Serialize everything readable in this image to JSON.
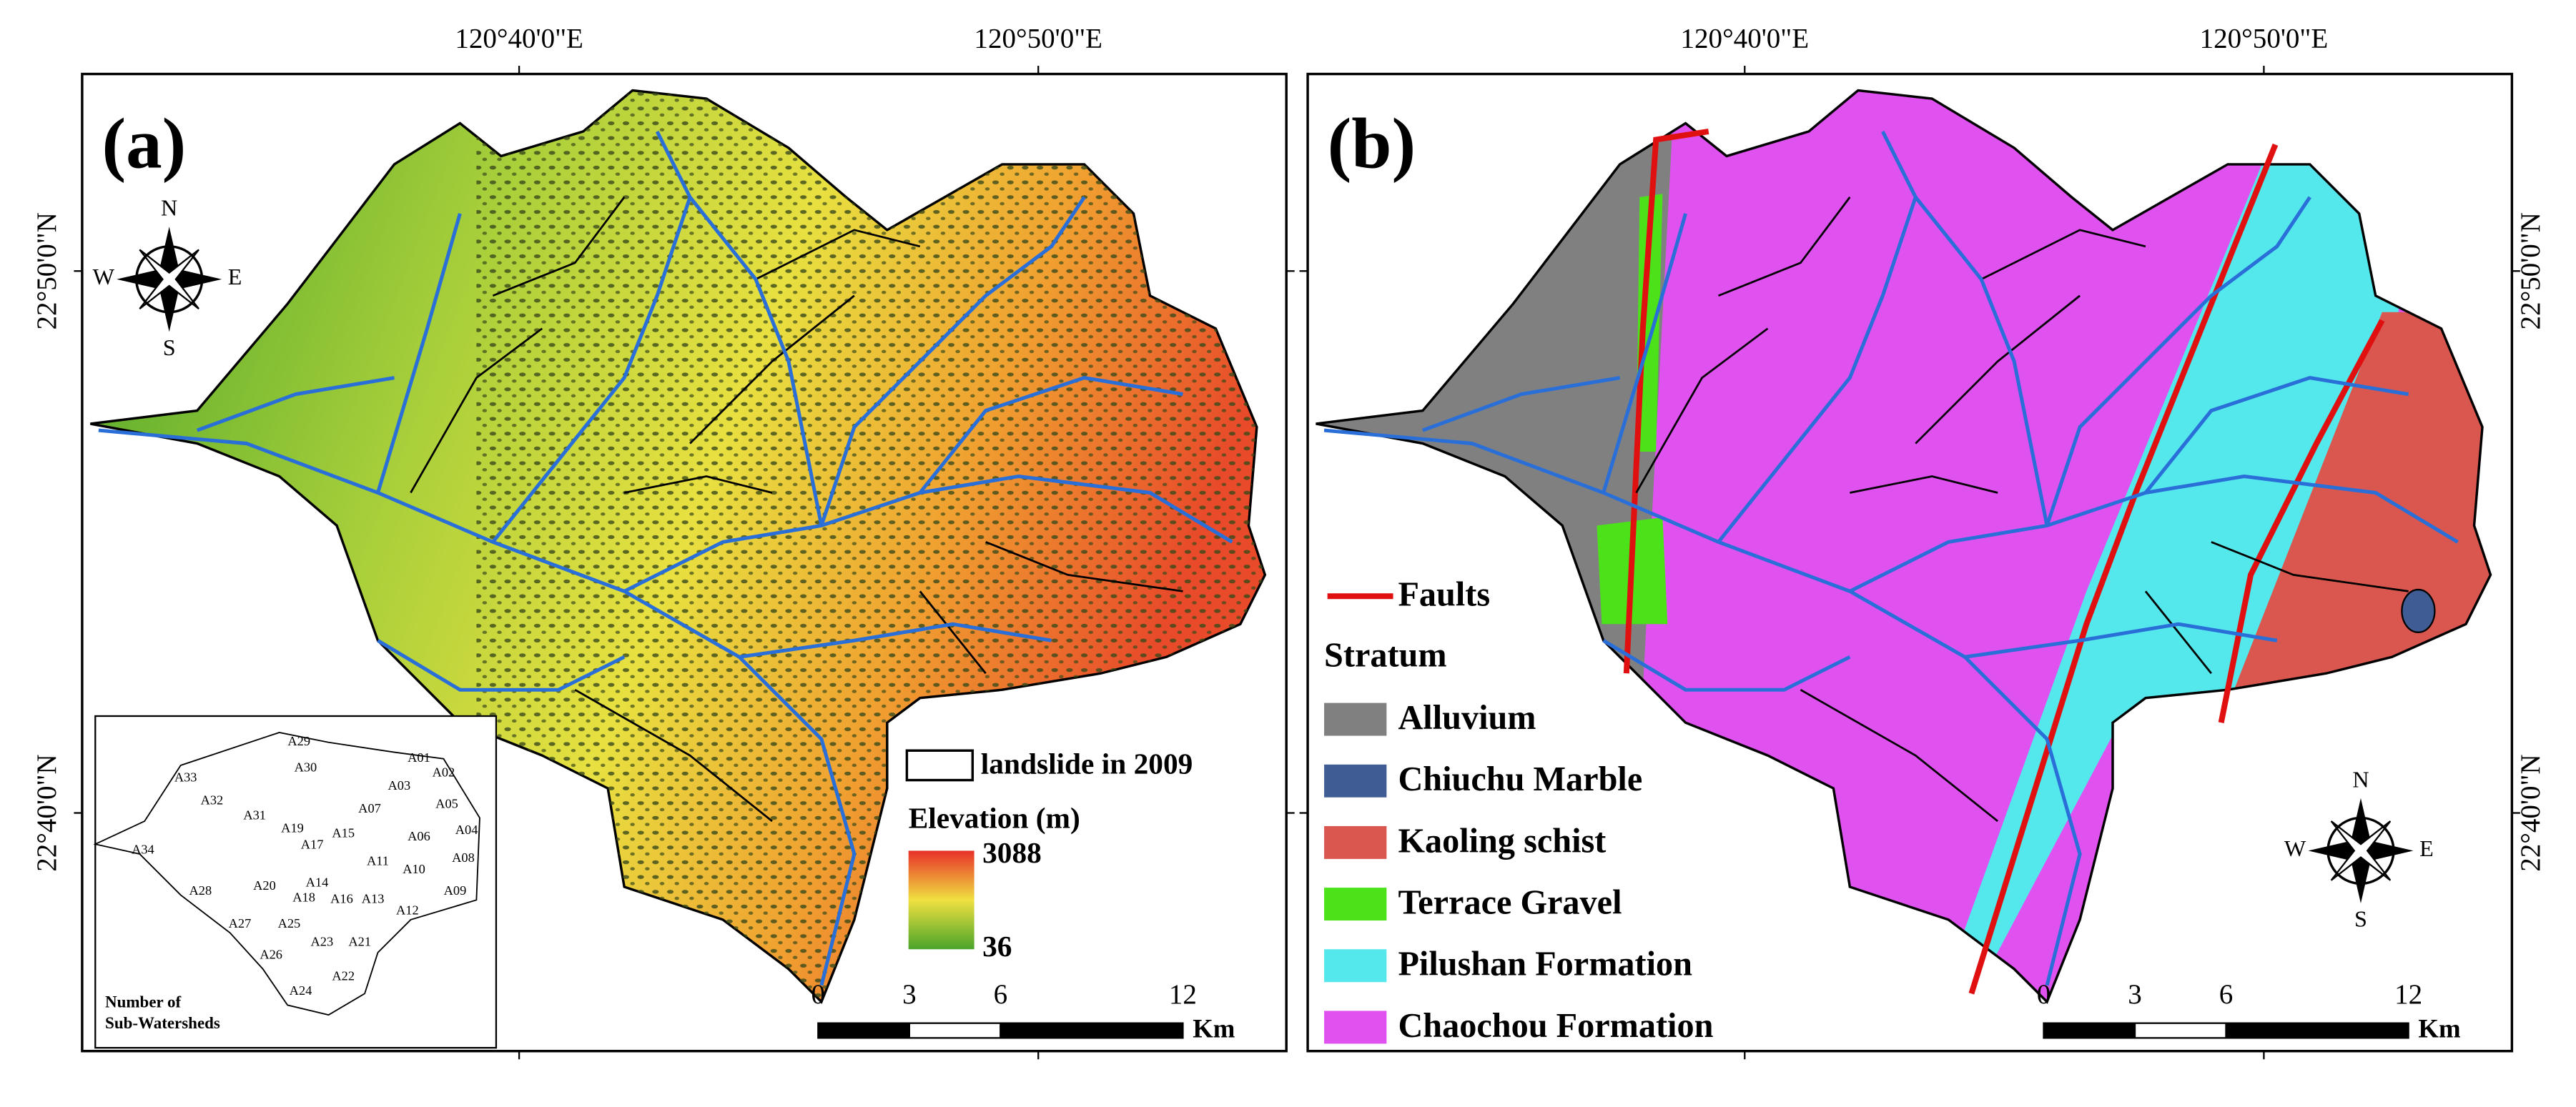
{
  "panels": [
    {
      "label": "(a)",
      "lon_labels": [
        "120°40'0\"E",
        "120°50'0\"E"
      ],
      "lat_labels": [
        "22°50'0\"N",
        "22°40'0\"N"
      ],
      "compass": {
        "n": "N",
        "s": "S",
        "w": "W",
        "e": "E"
      },
      "landslide_label": "landslide in 2009",
      "elevation_title": "Elevation (m)",
      "elevation_max": 3088,
      "elevation_min": 36,
      "scale_ticks": [
        0,
        3,
        6,
        12
      ],
      "scale_unit": "Km",
      "inset": {
        "title": [
          "Number of",
          "Sub-Watersheds"
        ],
        "labels": [
          "A29",
          "A33",
          "A30",
          "A01",
          "A02",
          "A32",
          "A31",
          "A03",
          "A05",
          "A07",
          "A19",
          "A15",
          "A04",
          "A17",
          "A06",
          "A11",
          "A10",
          "A08",
          "A34",
          "A20",
          "A14",
          "A16",
          "A13",
          "A12",
          "A09",
          "A28",
          "A18",
          "A25",
          "A27",
          "A26",
          "A23",
          "A21",
          "A22",
          "A24"
        ]
      }
    },
    {
      "label": "(b)",
      "lon_labels": [
        "120°40'0\"E",
        "120°50'0\"E"
      ],
      "lat_labels": [
        "22°50'0\"N",
        "22°40'0\"N"
      ],
      "compass": {
        "n": "N",
        "s": "S",
        "w": "W",
        "e": "E"
      },
      "faults_label": "Faults",
      "stratum_title": "Stratum",
      "strata": [
        {
          "name": "Alluvium",
          "color": "#808080"
        },
        {
          "name": "Chiuchu Marble",
          "color": "#3f5d94"
        },
        {
          "name": "Kaoling schist",
          "color": "#d9574f"
        },
        {
          "name": "Terrace Gravel",
          "color": "#4be21a"
        },
        {
          "name": "Pilushan Formation",
          "color": "#54e8ec"
        },
        {
          "name": "Chaochou Formation",
          "color": "#e052f0"
        }
      ],
      "scale_ticks": [
        0,
        3,
        6,
        12
      ],
      "scale_unit": "Km"
    }
  ]
}
